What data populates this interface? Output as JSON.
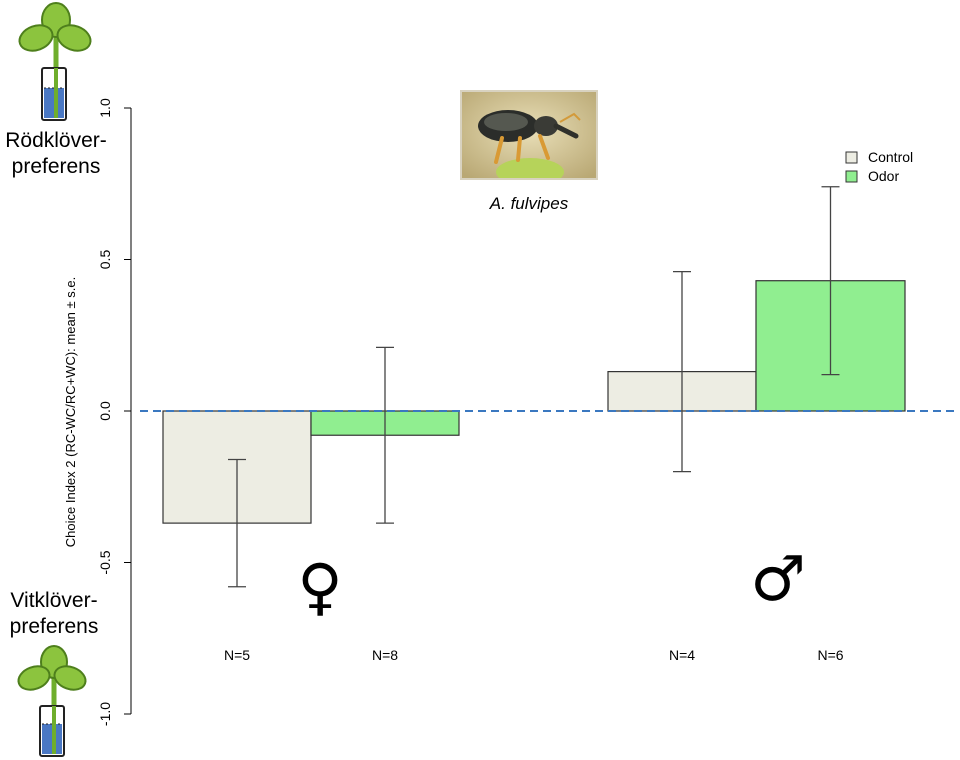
{
  "annotations": {
    "top_preference": "Rödklöver-\npreferens",
    "bottom_preference": "Vitklöver-\npreferens",
    "species": "A. fulvipes"
  },
  "icons": [
    "clover-in-tube-icon",
    "weevil-photo",
    "female-symbol-icon",
    "male-symbol-icon"
  ],
  "chart_data": {
    "type": "bar",
    "ylabel": "Choice Index 2 (RC-WC/RC+WC): mean ± s.e.",
    "xlabel": "",
    "ylim": [
      -1.0,
      1.0
    ],
    "yticks": [
      "-1.0",
      "-0.5",
      "0.0",
      "0.5",
      "1.0"
    ],
    "reference_line": 0.0,
    "legend": {
      "position": "top-right",
      "entries": [
        "Control",
        "Odor"
      ]
    },
    "colors": {
      "Control": "#ededE3",
      "Odor": "#90ee90",
      "reference_line": "#3a78c0"
    },
    "groups": [
      {
        "symbol": "♀",
        "bars": [
          {
            "series": "Control",
            "value": -0.37,
            "err_low": -0.58,
            "err_high": -0.16,
            "n_label": "N=5"
          },
          {
            "series": "Odor",
            "value": -0.08,
            "err_low": -0.37,
            "err_high": 0.21,
            "n_label": "N=8"
          }
        ]
      },
      {
        "symbol": "♂",
        "bars": [
          {
            "series": "Control",
            "value": 0.13,
            "err_low": -0.2,
            "err_high": 0.46,
            "n_label": "N=4"
          },
          {
            "series": "Odor",
            "value": 0.43,
            "err_low": 0.12,
            "err_high": 0.74,
            "n_label": "N=6"
          }
        ]
      }
    ]
  }
}
